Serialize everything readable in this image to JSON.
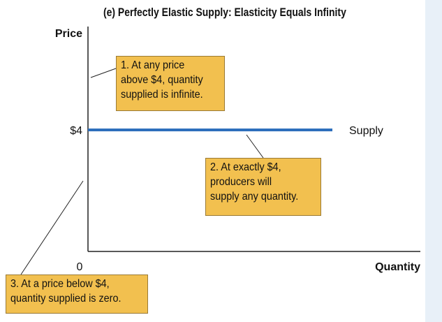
{
  "chart_data": {
    "type": "line",
    "title": "(e) Perfectly Elastic Supply: Elasticity Equals Infinity",
    "xlabel": "Quantity",
    "ylabel": "Price",
    "y_tick_labels": [
      "$4"
    ],
    "origin_label": "0",
    "series": [
      {
        "name": "Supply",
        "price": 4,
        "color": "#2e6fbc"
      }
    ],
    "annotations": [
      {
        "lines": [
          "1. At any price",
          "above $4, quantity",
          "supplied is infinite."
        ]
      },
      {
        "lines": [
          "2. At exactly $4,",
          "producers will",
          "supply any quantity."
        ]
      },
      {
        "lines": [
          "3. At a price below $4,",
          "quantity supplied is zero."
        ]
      }
    ]
  },
  "colors": {
    "supply_line": "#2e6fbc",
    "callout_fill": "#f2c04f",
    "side_panel": "#e8f0f8"
  }
}
